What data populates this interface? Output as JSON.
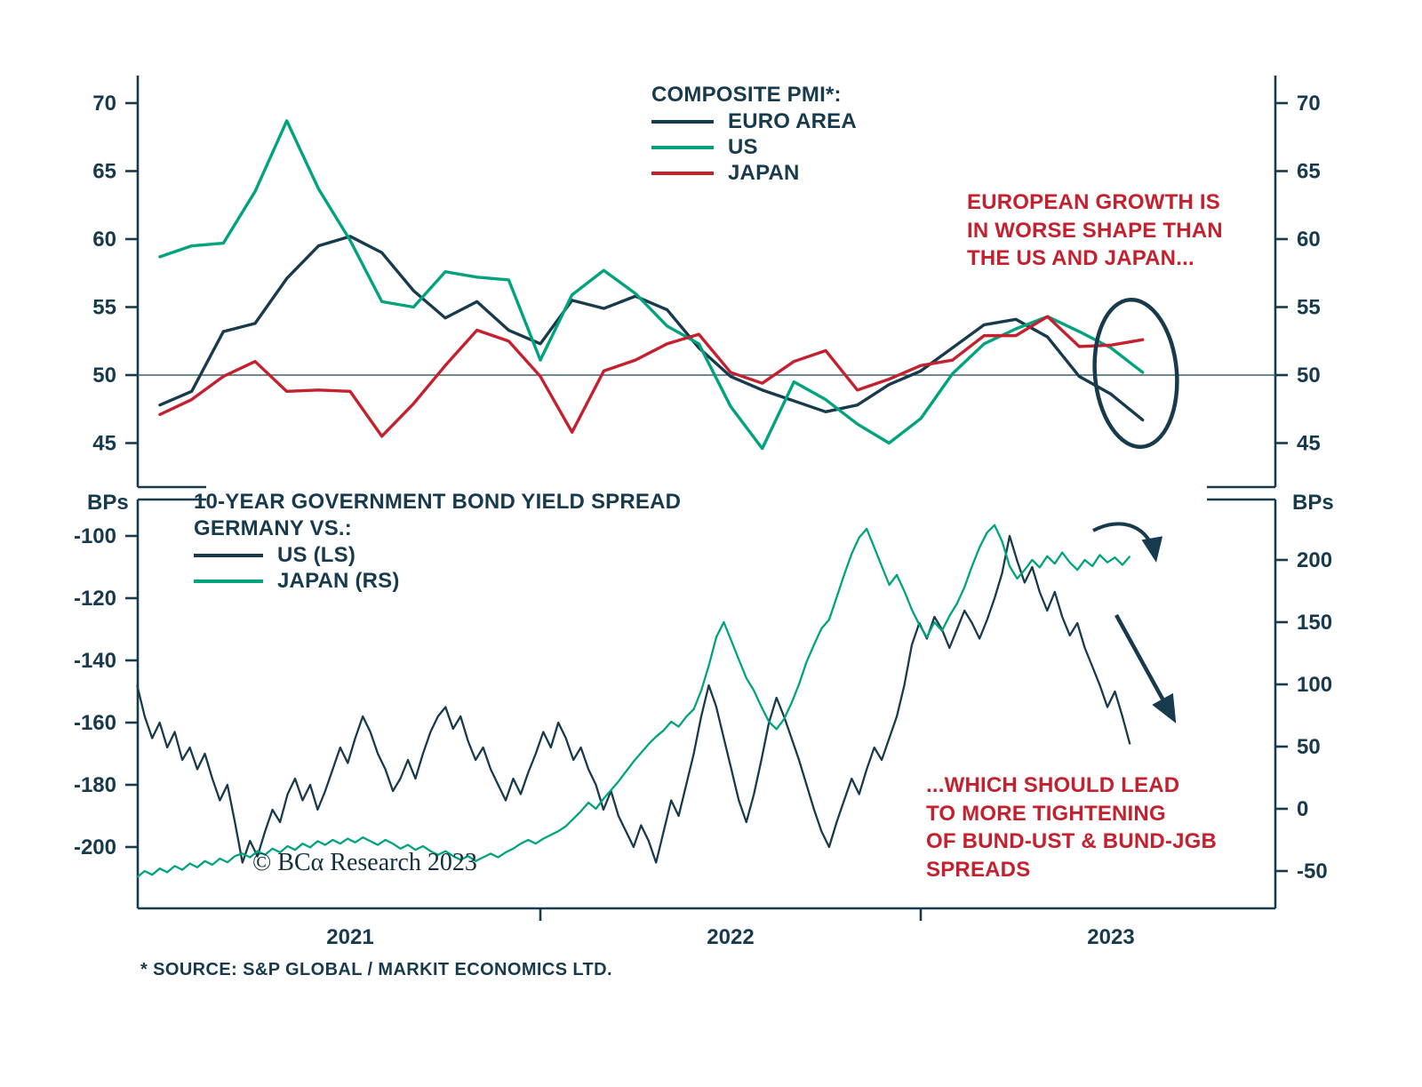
{
  "colors": {
    "navy": "#173a4d",
    "green": "#00a37e",
    "red": "#c4202e"
  },
  "top_legend": {
    "title": "COMPOSITE PMI*:",
    "items": [
      {
        "label": "EURO AREA",
        "color": "#173a4d"
      },
      {
        "label": "US",
        "color": "#00a37e"
      },
      {
        "label": "JAPAN",
        "color": "#c4202e"
      }
    ]
  },
  "bottom_legend": {
    "title": "10-YEAR GOVERNMENT BOND YIELD SPREAD\nGERMANY VS.:",
    "items": [
      {
        "label": "US (LS)",
        "color": "#173a4d"
      },
      {
        "label": "JAPAN (RS)",
        "color": "#00a37e"
      }
    ]
  },
  "annotations": {
    "top_right": "EUROPEAN GROWTH IS\nIN WORSE SHAPE THAN\nTHE US AND JAPAN...",
    "bottom_right": "...WHICH SHOULD LEAD\nTO MORE TIGHTENING\nOF BUND-UST & BUND-JGB\nSPREADS",
    "copyright": "© BCα Research 2023"
  },
  "axis": {
    "bps_left": "BPs",
    "bps_right": "BPs"
  },
  "footer": "* SOURCE: S&P GLOBAL / MARKIT ECONOMICS LTD.",
  "chart_data": [
    {
      "type": "line",
      "title": "COMPOSITE PMI*:",
      "x_start": 2021.0,
      "x_step": 0.0833333,
      "ylim": [
        45,
        70
      ],
      "yticks": [
        45,
        50,
        55,
        60,
        65,
        70
      ],
      "reference_line": 50,
      "legend_position": "top-center",
      "grid": false,
      "series": [
        {
          "name": "EURO AREA",
          "color": "#173a4d",
          "values": [
            47.8,
            48.8,
            53.2,
            53.8,
            57.1,
            59.5,
            60.2,
            59.0,
            56.2,
            54.2,
            55.4,
            53.3,
            52.3,
            55.5,
            54.9,
            55.8,
            54.8,
            52.0,
            49.9,
            48.9,
            48.1,
            47.3,
            47.8,
            49.3,
            50.3,
            52.0,
            53.7,
            54.1,
            52.8,
            49.9,
            48.6,
            46.7
          ]
        },
        {
          "name": "US",
          "color": "#00a37e",
          "values": [
            58.7,
            59.5,
            59.7,
            63.5,
            68.7,
            63.7,
            59.9,
            55.4,
            55.0,
            57.6,
            57.2,
            57.0,
            51.1,
            55.9,
            57.7,
            56.0,
            53.6,
            52.3,
            47.7,
            44.6,
            49.5,
            48.2,
            46.4,
            45.0,
            46.8,
            50.1,
            52.3,
            53.4,
            54.3,
            53.2,
            52.0,
            50.2
          ]
        },
        {
          "name": "JAPAN",
          "color": "#c4202e",
          "values": [
            47.1,
            48.2,
            49.9,
            51.0,
            48.8,
            48.9,
            48.8,
            45.5,
            47.9,
            50.7,
            53.3,
            52.5,
            49.9,
            45.8,
            50.3,
            51.1,
            52.3,
            53.0,
            50.2,
            49.4,
            51.0,
            51.8,
            48.9,
            49.7,
            50.7,
            51.1,
            52.9,
            52.9,
            54.3,
            52.1,
            52.2,
            52.6
          ]
        }
      ]
    },
    {
      "type": "line",
      "title": "10-YEAR GOVERNMENT BOND YIELD SPREAD GERMANY VS.:",
      "x_start": 2020.94,
      "x_end": 2023.55,
      "left_axis": {
        "label": "BPs",
        "ticks": [
          -100,
          -120,
          -140,
          -160,
          -180,
          -200
        ]
      },
      "right_axis": {
        "label": "BPs",
        "ticks": [
          200,
          150,
          100,
          50,
          0,
          -50
        ]
      },
      "x_tick_years": [
        2022,
        2023
      ],
      "x_year_labels": [
        {
          "label": "2021",
          "year": 2021.5
        },
        {
          "label": "2022",
          "year": 2022.5
        },
        {
          "label": "2023",
          "year": 2023.5
        }
      ],
      "series": [
        {
          "name": "US (LS)",
          "axis": "left",
          "color": "#173a4d",
          "values": [
            -148,
            -158,
            -165,
            -160,
            -168,
            -163,
            -172,
            -168,
            -175,
            -170,
            -178,
            -185,
            -180,
            -192,
            -205,
            -198,
            -203,
            -195,
            -188,
            -192,
            -183,
            -178,
            -185,
            -180,
            -188,
            -182,
            -175,
            -168,
            -173,
            -165,
            -158,
            -163,
            -170,
            -175,
            -182,
            -178,
            -172,
            -178,
            -170,
            -163,
            -158,
            -155,
            -162,
            -158,
            -166,
            -172,
            -168,
            -175,
            -180,
            -185,
            -178,
            -183,
            -176,
            -170,
            -163,
            -168,
            -160,
            -165,
            -172,
            -168,
            -175,
            -180,
            -188,
            -182,
            -190,
            -195,
            -200,
            -193,
            -198,
            -205,
            -195,
            -185,
            -190,
            -180,
            -170,
            -158,
            -148,
            -155,
            -165,
            -175,
            -185,
            -192,
            -183,
            -172,
            -160,
            -152,
            -158,
            -165,
            -172,
            -180,
            -188,
            -195,
            -200,
            -192,
            -185,
            -178,
            -183,
            -175,
            -168,
            -172,
            -165,
            -158,
            -148,
            -135,
            -128,
            -133,
            -126,
            -130,
            -136,
            -130,
            -124,
            -128,
            -133,
            -127,
            -120,
            -112,
            -100,
            -108,
            -115,
            -110,
            -118,
            -124,
            -118,
            -126,
            -132,
            -128,
            -136,
            -142,
            -148,
            -155,
            -150,
            -158,
            -167
          ]
        },
        {
          "name": "JAPAN (RS)",
          "axis": "right",
          "color": "#00a37e",
          "values": [
            -55,
            -50,
            -53,
            -48,
            -51,
            -46,
            -49,
            -44,
            -47,
            -42,
            -45,
            -40,
            -43,
            -38,
            -36,
            -39,
            -34,
            -37,
            -32,
            -35,
            -30,
            -33,
            -28,
            -31,
            -26,
            -29,
            -25,
            -28,
            -24,
            -27,
            -23,
            -26,
            -29,
            -25,
            -28,
            -32,
            -29,
            -33,
            -30,
            -34,
            -37,
            -34,
            -38,
            -41,
            -38,
            -42,
            -39,
            -36,
            -39,
            -35,
            -32,
            -28,
            -25,
            -28,
            -24,
            -21,
            -18,
            -14,
            -8,
            -2,
            5,
            0,
            8,
            15,
            22,
            30,
            38,
            45,
            52,
            58,
            63,
            70,
            66,
            74,
            80,
            95,
            115,
            138,
            150,
            135,
            120,
            105,
            95,
            82,
            70,
            64,
            72,
            85,
            100,
            118,
            132,
            145,
            152,
            170,
            188,
            205,
            218,
            225,
            210,
            195,
            180,
            188,
            175,
            160,
            148,
            138,
            150,
            143,
            155,
            165,
            178,
            195,
            210,
            222,
            228,
            215,
            195,
            185,
            192,
            200,
            194,
            203,
            197,
            206,
            198,
            192,
            200,
            195,
            204,
            198,
            202,
            196,
            203
          ]
        }
      ]
    }
  ]
}
